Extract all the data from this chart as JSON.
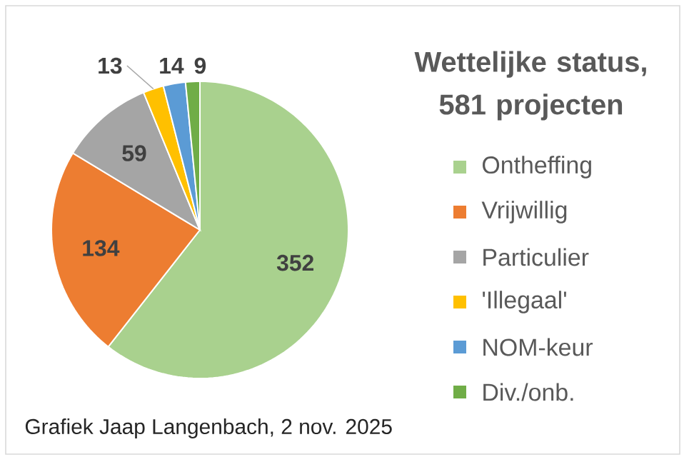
{
  "chart_data": {
    "type": "pie",
    "title": "Wettelijke status, 581 projecten",
    "categories": [
      "Ontheffing",
      "Vrijwillig",
      "Particulier",
      "'Illegaal'",
      "NOM-keur",
      "Div./onb."
    ],
    "values": [
      352,
      134,
      59,
      13,
      14,
      9
    ],
    "colors": [
      "#a9d18e",
      "#ed7d31",
      "#a5a5a5",
      "#ffc000",
      "#5b9bd5",
      "#70ad47"
    ],
    "data_labels": true,
    "legend": "right",
    "annotations": [
      "Grafiek Jaap Langenbach, 2 nov. 2025"
    ]
  }
}
